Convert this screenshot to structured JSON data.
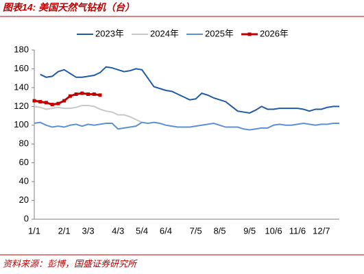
{
  "chart_data": {
    "type": "line",
    "title": "图表14:  美国天然气钻机（台）",
    "source": "资料来源：彭博，国盛证券研究所",
    "categories": [
      "1/1",
      null,
      null,
      null,
      null,
      "2/1",
      null,
      null,
      null,
      "3/3",
      null,
      null,
      null,
      null,
      "4/3",
      null,
      null,
      null,
      "5/4",
      null,
      null,
      null,
      "6/4",
      null,
      null,
      null,
      null,
      "7/5",
      null,
      null,
      null,
      "8/5",
      null,
      null,
      null,
      null,
      "9/5",
      null,
      null,
      null,
      "10/6",
      null,
      null,
      null,
      "11/6",
      null,
      null,
      null,
      "12/7",
      null,
      null,
      null
    ],
    "ylim": [
      0,
      180
    ],
    "yticks": [
      0,
      20,
      40,
      60,
      80,
      100,
      120,
      140,
      160,
      180
    ],
    "series": [
      {
        "name": "2023年",
        "color": "#1f5aa6",
        "values": [
          null,
          154,
          151,
          152,
          157,
          159,
          155,
          151,
          151,
          152,
          153,
          156,
          162,
          161,
          159,
          157,
          158,
          160,
          159,
          150,
          141,
          139,
          137,
          136,
          133,
          130,
          127,
          128,
          134,
          132,
          129,
          127,
          125,
          120,
          115,
          114,
          113,
          116,
          120,
          117,
          117,
          118,
          118,
          118,
          118,
          117,
          115,
          117,
          117,
          119,
          120,
          120
        ]
      },
      {
        "name": "2024年",
        "color": "#c8c8c8",
        "values": [
          120,
          119,
          117,
          118,
          119,
          118,
          118,
          119,
          121,
          121,
          120,
          117,
          115,
          114,
          111,
          111,
          109,
          106,
          103,
          null,
          null,
          null,
          null,
          null,
          null,
          null,
          null,
          null,
          null,
          null,
          null,
          null,
          null,
          null,
          null,
          null,
          null,
          null,
          null,
          null,
          null,
          null,
          null,
          null,
          null,
          null,
          null,
          null,
          null,
          null,
          null,
          null
        ]
      },
      {
        "name": "2025年",
        "color": "#5b8fd6",
        "values": [
          102,
          103,
          100,
          98,
          99,
          98,
          100,
          101,
          99,
          101,
          100,
          101,
          102,
          102,
          96,
          97,
          98,
          99,
          103,
          102,
          103,
          102,
          100,
          99,
          98,
          98,
          98,
          99,
          100,
          101,
          102,
          100,
          98,
          98,
          98,
          96,
          95,
          96,
          97,
          97,
          100,
          101,
          100,
          100,
          101,
          102,
          101,
          100,
          101,
          101,
          102,
          102
        ]
      },
      {
        "name": "2026年",
        "color": "#c00000",
        "marker": "square",
        "values": [
          126,
          125,
          124,
          122,
          123,
          126,
          131,
          133,
          134,
          133,
          133,
          132,
          null,
          null,
          null,
          null,
          null,
          null,
          null,
          null,
          null,
          null,
          null,
          null,
          null,
          null,
          null,
          null,
          null,
          null,
          null,
          null,
          null,
          null,
          null,
          null,
          null,
          null,
          null,
          null,
          null,
          null,
          null,
          null,
          null,
          null,
          null,
          null,
          null,
          null,
          null,
          null
        ]
      }
    ]
  }
}
